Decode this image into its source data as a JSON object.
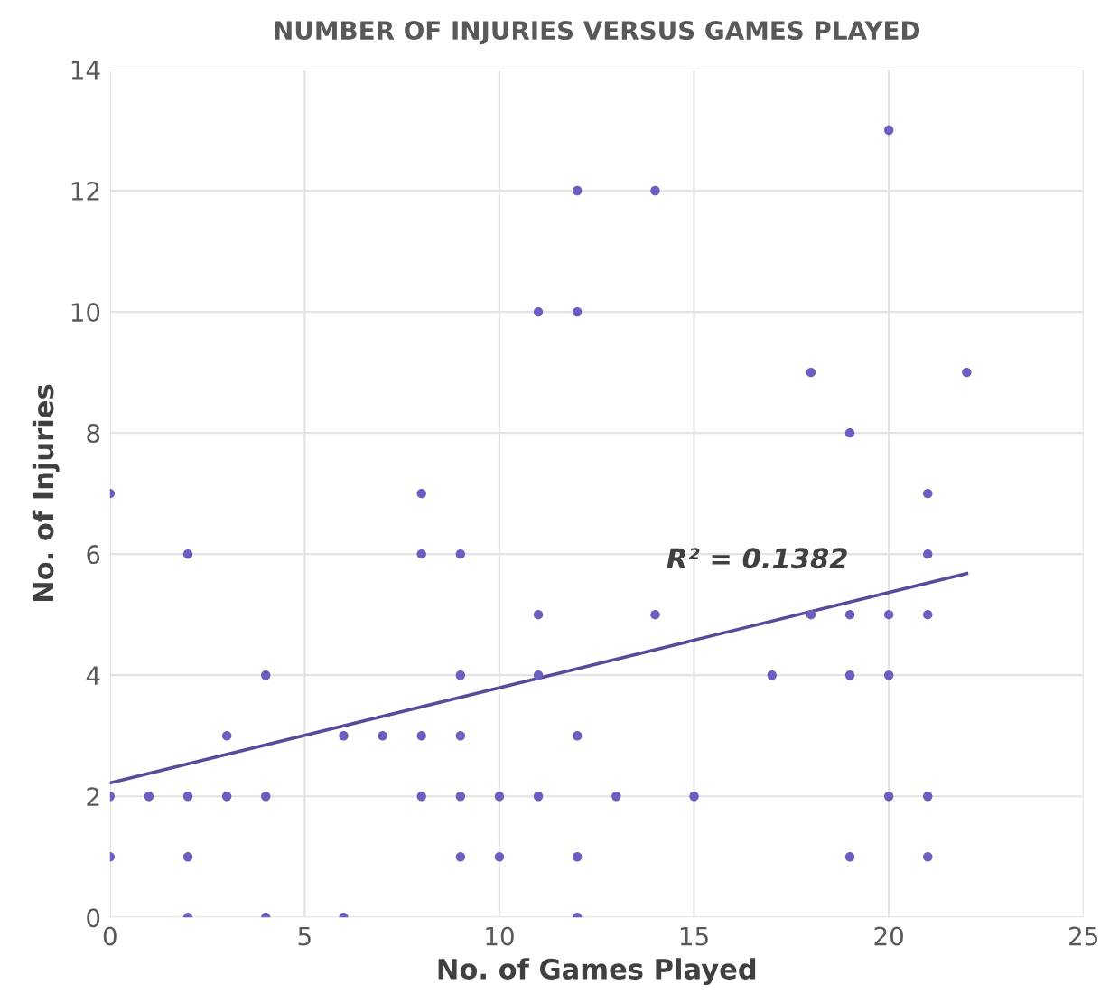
{
  "chart_data": {
    "type": "scatter",
    "title": "NUMBER OF INJURIES VERSUS GAMES PLAYED",
    "xlabel": "No. of Games Played",
    "ylabel": "No. of Injuries",
    "xlim": [
      0,
      25
    ],
    "xticks": [
      0,
      5,
      10,
      15,
      20,
      25
    ],
    "ylim": [
      0,
      14
    ],
    "yticks": [
      0,
      2,
      4,
      6,
      8,
      10,
      12,
      14
    ],
    "grid": true,
    "series": [
      {
        "marker": "circle",
        "color": "#6a5fc1",
        "x": [
          0,
          8,
          11,
          12,
          12,
          14,
          20,
          18,
          22,
          19,
          21,
          2,
          8,
          9,
          11,
          4,
          9,
          11,
          3,
          6,
          7,
          8,
          9,
          12,
          0,
          1,
          2,
          3,
          4,
          8,
          9,
          10,
          11,
          0,
          2,
          9,
          10,
          12,
          2,
          4,
          6,
          12,
          21,
          14,
          18,
          19,
          20,
          21,
          17,
          19,
          20,
          13,
          15,
          20,
          21,
          19,
          21
        ],
        "values": [
          7,
          7,
          10,
          12,
          10,
          12,
          13,
          9,
          9,
          8,
          7,
          6,
          6,
          6,
          5,
          4,
          4,
          4,
          3,
          3,
          3,
          3,
          3,
          3,
          2,
          2,
          2,
          2,
          2,
          2,
          2,
          2,
          2,
          1,
          1,
          1,
          1,
          1,
          0,
          0,
          0,
          0,
          6,
          5,
          5,
          5,
          5,
          5,
          4,
          4,
          4,
          2,
          2,
          2,
          2,
          1,
          1
        ]
      },
      {
        "type": "line",
        "color": "#5b4a9a",
        "x": [
          0,
          22
        ],
        "values": [
          2.22,
          5.68
        ]
      }
    ],
    "annotations": [
      "R² = 0.1382"
    ]
  }
}
